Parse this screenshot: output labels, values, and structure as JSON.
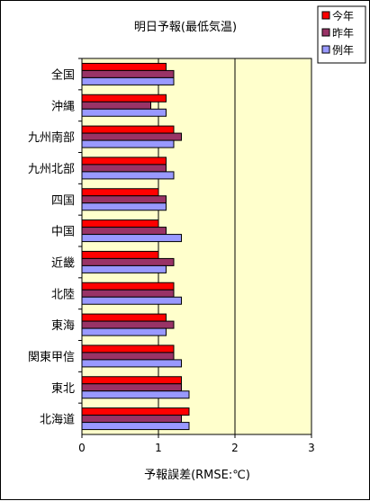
{
  "chart_data": {
    "type": "bar",
    "orientation": "horizontal",
    "title": "明日予報(最低気温)",
    "xlabel": "予報誤差(RMSE:℃)",
    "ylabel": "",
    "xlim": [
      0,
      3
    ],
    "xticks": [
      "0",
      "1",
      "2",
      "3"
    ],
    "grid": "vertical major lines",
    "legend_position": "top-right",
    "categories": [
      "全国",
      "沖縄",
      "九州南部",
      "九州北部",
      "四国",
      "中国",
      "近畿",
      "北陸",
      "東海",
      "関東甲信",
      "東北",
      "北海道"
    ],
    "series": [
      {
        "name": "今年",
        "color": "#ff0000",
        "values": [
          1.1,
          1.1,
          1.2,
          1.1,
          1.0,
          1.0,
          1.0,
          1.2,
          1.1,
          1.2,
          1.3,
          1.4
        ]
      },
      {
        "name": "昨年",
        "color": "#993366",
        "values": [
          1.2,
          0.9,
          1.3,
          1.1,
          1.1,
          1.1,
          1.2,
          1.2,
          1.2,
          1.2,
          1.3,
          1.3
        ]
      },
      {
        "name": "例年",
        "color": "#9999ff",
        "values": [
          1.2,
          1.1,
          1.2,
          1.2,
          1.1,
          1.3,
          1.1,
          1.3,
          1.1,
          1.3,
          1.4,
          1.4
        ]
      }
    ],
    "colors": {
      "plot_background": "#ffffcc",
      "gridline": "#000000",
      "bar_outline": "#000000"
    }
  }
}
